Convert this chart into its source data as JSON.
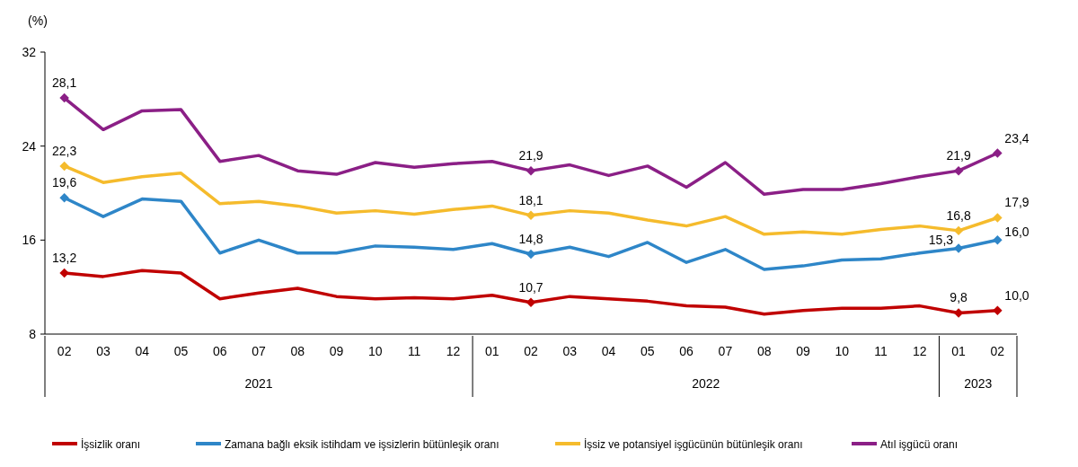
{
  "chart_data": {
    "type": "line",
    "ylabel": "(%)",
    "categories": [
      "02",
      "03",
      "04",
      "05",
      "06",
      "07",
      "08",
      "09",
      "10",
      "11",
      "12",
      "01",
      "02",
      "03",
      "04",
      "05",
      "06",
      "07",
      "08",
      "09",
      "10",
      "11",
      "12",
      "01",
      "02"
    ],
    "annotations": [
      "2021",
      "2022",
      "2023"
    ],
    "ylim": [
      8,
      32
    ],
    "yticks": [
      8,
      16,
      24,
      32
    ],
    "grid": false,
    "legend": "bottom",
    "line_style": "solid",
    "series": [
      {
        "name": "İşsizlik oranı",
        "color": "#c00000",
        "values": [
          13.2,
          12.9,
          13.4,
          13.2,
          11.0,
          11.5,
          11.9,
          11.2,
          11.0,
          11.1,
          11.0,
          11.3,
          10.7,
          11.2,
          11.0,
          10.8,
          10.4,
          10.3,
          9.7,
          10.0,
          10.2,
          10.2,
          10.4,
          9.8,
          10.0
        ],
        "value_labels": [
          "13,2",
          null,
          null,
          null,
          null,
          null,
          null,
          null,
          null,
          null,
          null,
          null,
          "10,7",
          null,
          null,
          null,
          null,
          null,
          null,
          null,
          null,
          null,
          null,
          "9,8",
          "10,0"
        ]
      },
      {
        "name": "Zamana bağlı eksik istihdam ve işsizlerin bütünleşik oranı",
        "color": "#2e86c8",
        "values": [
          19.6,
          18.0,
          19.5,
          19.3,
          14.9,
          16.0,
          14.9,
          14.9,
          15.5,
          15.4,
          15.2,
          15.7,
          14.8,
          15.4,
          14.6,
          15.8,
          14.1,
          15.2,
          13.5,
          13.8,
          14.3,
          14.4,
          14.9,
          15.3,
          16.0
        ],
        "value_labels": [
          "19,6",
          null,
          null,
          null,
          null,
          null,
          null,
          null,
          null,
          null,
          null,
          null,
          "14,8",
          null,
          null,
          null,
          null,
          null,
          null,
          null,
          null,
          null,
          null,
          "15,3",
          "16,0"
        ]
      },
      {
        "name": "İşsiz ve potansiyel işgücünün bütünleşik oranı",
        "color": "#f5bb2c",
        "values": [
          22.3,
          20.9,
          21.4,
          21.7,
          19.1,
          19.3,
          18.9,
          18.3,
          18.5,
          18.2,
          18.6,
          18.9,
          18.1,
          18.5,
          18.3,
          17.7,
          17.2,
          18.0,
          16.5,
          16.7,
          16.5,
          16.9,
          17.2,
          16.8,
          17.9
        ],
        "value_labels": [
          "22,3",
          null,
          null,
          null,
          null,
          null,
          null,
          null,
          null,
          null,
          null,
          null,
          "18,1",
          null,
          null,
          null,
          null,
          null,
          null,
          null,
          null,
          null,
          null,
          "16,8",
          "17,9"
        ]
      },
      {
        "name": "Atıl işgücü oranı",
        "color": "#8b1f86",
        "values": [
          28.1,
          25.4,
          27.0,
          27.1,
          22.7,
          23.2,
          21.9,
          21.6,
          22.6,
          22.2,
          22.5,
          22.7,
          21.9,
          22.4,
          21.5,
          22.3,
          20.5,
          22.6,
          19.9,
          20.3,
          20.3,
          20.8,
          21.4,
          21.9,
          23.4
        ],
        "value_labels": [
          "28,1",
          null,
          null,
          null,
          null,
          null,
          null,
          null,
          null,
          null,
          null,
          null,
          "21,9",
          null,
          null,
          null,
          null,
          null,
          null,
          null,
          null,
          null,
          null,
          "21,9",
          "23,4"
        ]
      }
    ]
  }
}
